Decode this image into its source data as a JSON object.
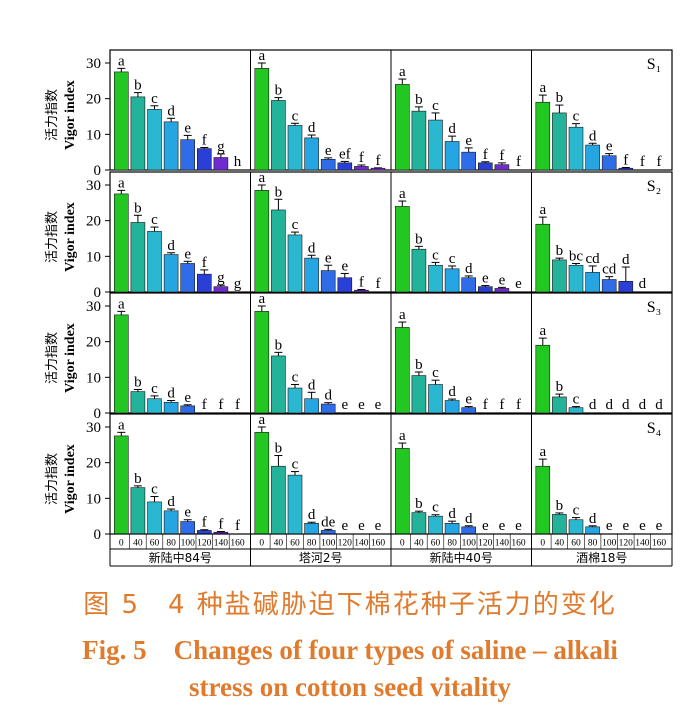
{
  "chart_data": {
    "type": "bar",
    "ylabel_cn": "活力指数",
    "ylabel_en": "Vigor index",
    "ylim": [
      0,
      30
    ],
    "yticks": [
      "0",
      "10",
      "20",
      "30"
    ],
    "concentrations": [
      "0",
      "40",
      "60",
      "80",
      "100",
      "120",
      "140",
      "160"
    ],
    "cultivars": [
      "新陆中84号",
      "塔河2号",
      "新陆中40号",
      "酒棉18号"
    ],
    "colors": [
      "#22c722",
      "#22b39a",
      "#29b8cf",
      "#26a5e3",
      "#2f6de8",
      "#2a3fd6",
      "#6f2ad0",
      "#8a2be2"
    ],
    "panels": [
      {
        "label": "S₁",
        "groups": [
          {
            "values": [
              27.5,
              20.5,
              17,
              13.5,
              8.5,
              6,
              3.5,
              0
            ],
            "errors": [
              1,
              1.2,
              1,
              1,
              1.2,
              0.3,
              1,
              0
            ],
            "letters": [
              "a",
              "b",
              "c",
              "d",
              "e",
              "f",
              "g",
              "h"
            ]
          },
          {
            "values": [
              28.5,
              19.5,
              12.5,
              9,
              3,
              2,
              1,
              0.5
            ],
            "errors": [
              1.5,
              0.8,
              0.6,
              0.8,
              0.4,
              0.4,
              0.4,
              0.1
            ],
            "letters": [
              "a",
              "b",
              "c",
              "d",
              "e",
              "ef",
              "f",
              "f"
            ]
          },
          {
            "values": [
              24,
              16.5,
              14,
              8,
              5,
              2,
              1.5,
              0
            ],
            "errors": [
              1.5,
              1.2,
              2,
              1.5,
              1.2,
              0.3,
              0.5,
              0
            ],
            "letters": [
              "a",
              "b",
              "c",
              "d",
              "e",
              "f",
              "f",
              "f"
            ]
          },
          {
            "values": [
              19,
              16,
              12,
              7,
              4,
              0.5,
              0,
              0
            ],
            "errors": [
              2,
              2.2,
              1,
              0.5,
              0.6,
              0.2,
              0,
              0
            ],
            "letters": [
              "a",
              "b",
              "c",
              "d",
              "e",
              "f",
              "f",
              "f"
            ]
          }
        ]
      },
      {
        "label": "S₂",
        "groups": [
          {
            "values": [
              27.5,
              19.5,
              17,
              10.5,
              8,
              5,
              1.5,
              0
            ],
            "errors": [
              1,
              2,
              1.2,
              0.5,
              0.6,
              1.2,
              0.4,
              0
            ],
            "letters": [
              "a",
              "b",
              "c",
              "d",
              "e",
              "f",
              "g",
              "g"
            ]
          },
          {
            "values": [
              28.5,
              23,
              16,
              9.5,
              6,
              4,
              0.5,
              0
            ],
            "errors": [
              1.5,
              3,
              0.8,
              0.8,
              1.5,
              1.2,
              0.2,
              0
            ],
            "letters": [
              "a",
              "b",
              "c",
              "d",
              "e",
              "e",
              "f",
              "f"
            ]
          },
          {
            "values": [
              24,
              12,
              7.5,
              6.5,
              4,
              1.5,
              1,
              0
            ],
            "errors": [
              1.5,
              0.8,
              0.8,
              0.8,
              0.5,
              0.3,
              0.3,
              0
            ],
            "letters": [
              "a",
              "b",
              "c",
              "c",
              "d",
              "e",
              "e",
              "e"
            ]
          },
          {
            "values": [
              19,
              9,
              7.5,
              5.5,
              3.5,
              3,
              0,
              0
            ],
            "errors": [
              2,
              0.5,
              0.5,
              1.8,
              0.8,
              4,
              0,
              0
            ],
            "letters": [
              "a",
              "b",
              "bc",
              "cd",
              "cd",
              "d",
              "d",
              ""
            ]
          }
        ]
      },
      {
        "label": "S₃",
        "groups": [
          {
            "values": [
              27.5,
              6,
              4,
              3,
              2,
              0,
              0,
              0
            ],
            "errors": [
              1,
              0.6,
              0.8,
              0.5,
              0.3,
              0,
              0,
              0
            ],
            "letters": [
              "a",
              "b",
              "c",
              "d",
              "e",
              "f",
              "f",
              "f"
            ]
          },
          {
            "values": [
              28.5,
              16,
              7,
              4,
              2.5,
              0,
              0,
              0
            ],
            "errors": [
              1.5,
              1,
              1,
              1.8,
              0.4,
              0,
              0,
              0
            ],
            "letters": [
              "a",
              "b",
              "c",
              "d",
              "d",
              "e",
              "e",
              "e"
            ]
          },
          {
            "values": [
              24,
              10.5,
              8,
              3.5,
              1.5,
              0,
              0,
              0
            ],
            "errors": [
              1.5,
              1,
              1.2,
              0.4,
              0.3,
              0,
              0,
              0
            ],
            "letters": [
              "a",
              "b",
              "c",
              "d",
              "e",
              "f",
              "f",
              "f"
            ]
          },
          {
            "values": [
              19,
              4.5,
              1.5,
              0,
              0,
              0,
              0,
              0
            ],
            "errors": [
              2,
              0.8,
              0.3,
              0,
              0,
              0,
              0,
              0
            ],
            "letters": [
              "a",
              "b",
              "c",
              "d",
              "d",
              "d",
              "d",
              "d"
            ]
          }
        ]
      },
      {
        "label": "S₄",
        "groups": [
          {
            "values": [
              27.5,
              13,
              9,
              6.5,
              3.5,
              1,
              0.5,
              0
            ],
            "errors": [
              1,
              0.5,
              1.5,
              0.5,
              0.5,
              0.2,
              0.2,
              0
            ],
            "letters": [
              "a",
              "b",
              "c",
              "d",
              "e",
              "f",
              "f",
              "f"
            ]
          },
          {
            "values": [
              28.5,
              19,
              16.5,
              3,
              1,
              0,
              0,
              0
            ],
            "errors": [
              1.5,
              3,
              1,
              0.3,
              0.3,
              0,
              0,
              0
            ],
            "letters": [
              "a",
              "b",
              "c",
              "d",
              "de",
              "e",
              "e",
              "e"
            ]
          },
          {
            "values": [
              24,
              6,
              5,
              3,
              2,
              0,
              0,
              0
            ],
            "errors": [
              1.5,
              0.4,
              0.4,
              0.6,
              0.3,
              0,
              0,
              0
            ],
            "letters": [
              "a",
              "b",
              "c",
              "d",
              "d",
              "e",
              "e",
              "e"
            ]
          },
          {
            "values": [
              19,
              5.5,
              4,
              2,
              0,
              0,
              0,
              0
            ],
            "errors": [
              2,
              0.4,
              0.6,
              0.3,
              0,
              0,
              0,
              0
            ],
            "letters": [
              "a",
              "b",
              "c",
              "d",
              "e",
              "e",
              "e",
              "e"
            ]
          }
        ]
      }
    ]
  },
  "caption": {
    "cn": "图 5　4 种盐碱胁迫下棉花种子活力的变化",
    "en_line1": "Fig. 5　Changes of four types of saline – alkali",
    "en_line2": "stress on cotton seed vitality"
  }
}
